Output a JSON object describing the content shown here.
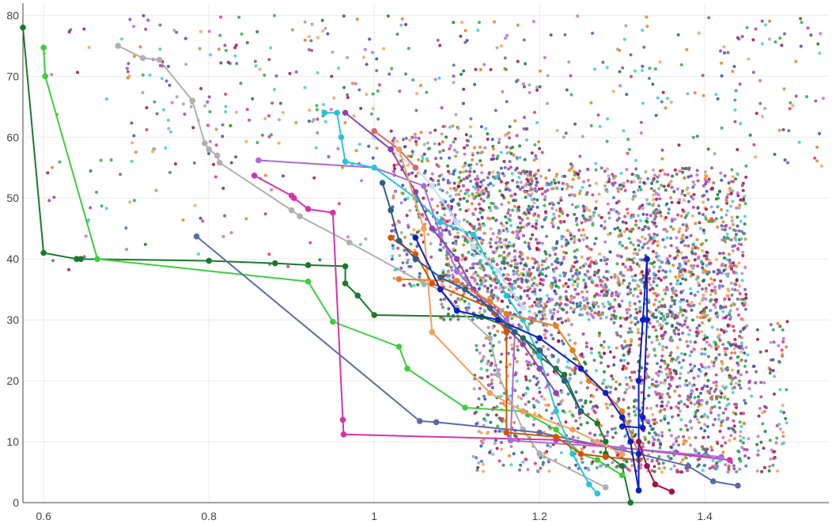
{
  "chart_data": {
    "type": "scatter",
    "title": "",
    "xlabel": "",
    "ylabel": "",
    "xlim": [
      0.575,
      1.55
    ],
    "ylim": [
      0,
      82
    ],
    "grid": true,
    "legend": "none",
    "x_ticks": [
      {
        "value": 0.6,
        "label": "0.6"
      },
      {
        "value": 0.8,
        "label": "0.8"
      },
      {
        "value": 1.0,
        "label": "1"
      },
      {
        "value": 1.2,
        "label": "1.2"
      },
      {
        "value": 1.4,
        "label": "1.4"
      }
    ],
    "y_ticks": [
      {
        "value": 0,
        "label": "0"
      },
      {
        "value": 10,
        "label": "10"
      },
      {
        "value": 20,
        "label": "20"
      },
      {
        "value": 30,
        "label": "30"
      },
      {
        "value": 40,
        "label": "40"
      },
      {
        "value": 50,
        "label": "50"
      },
      {
        "value": 60,
        "label": "60"
      },
      {
        "value": 70,
        "label": "70"
      },
      {
        "value": 80,
        "label": "80"
      }
    ],
    "background_scatter": {
      "colors": [
        "#e67e22",
        "#2e4fb5",
        "#8e44ad",
        "#2eaa4a",
        "#d63384",
        "#1a7a2a",
        "#a0a0a0",
        "#f5a05a",
        "#41c8dc",
        "#a50e4a",
        "#5b6ba8",
        "#c266d9"
      ],
      "clusters": [
        {
          "xmin": 1.08,
          "xmax": 1.45,
          "ymin": 30,
          "ymax": 55,
          "count": 1600
        },
        {
          "xmin": 1.12,
          "xmax": 1.45,
          "ymin": 5,
          "ymax": 40,
          "count": 1200
        },
        {
          "xmin": 1.02,
          "xmax": 1.2,
          "ymin": 35,
          "ymax": 62,
          "count": 450
        },
        {
          "xmin": 1.3,
          "xmax": 1.5,
          "ymin": 5,
          "ymax": 30,
          "count": 450
        },
        {
          "xmin": 0.7,
          "xmax": 1.55,
          "ymin": 55,
          "ymax": 80,
          "count": 400
        },
        {
          "xmin": 0.6,
          "xmax": 1.0,
          "ymin": 38,
          "ymax": 78,
          "count": 120
        }
      ]
    },
    "series": [
      {
        "color": "#1a7a2a",
        "points": [
          [
            0.575,
            78
          ],
          [
            0.6,
            41
          ],
          [
            0.64,
            40
          ],
          [
            0.645,
            40
          ],
          [
            0.8,
            39.7
          ],
          [
            0.88,
            39.3
          ],
          [
            0.92,
            39
          ],
          [
            0.965,
            38.8
          ],
          [
            0.965,
            36
          ],
          [
            0.98,
            34
          ],
          [
            1.0,
            30.8
          ],
          [
            1.13,
            30.5
          ],
          [
            1.16,
            29
          ],
          [
            1.18,
            27
          ],
          [
            1.2,
            24
          ],
          [
            1.22,
            22
          ],
          [
            1.23,
            21
          ],
          [
            1.25,
            15
          ],
          [
            1.27,
            13
          ],
          [
            1.28,
            10
          ],
          [
            1.28,
            8
          ],
          [
            1.3,
            6
          ],
          [
            1.31,
            0
          ]
        ]
      },
      {
        "color": "#3ccf3c",
        "points": [
          [
            0.6,
            74.7
          ],
          [
            0.602,
            70
          ],
          [
            0.665,
            40
          ],
          [
            0.92,
            36.3
          ],
          [
            0.95,
            29.7
          ],
          [
            1.03,
            25.6
          ],
          [
            1.04,
            22
          ],
          [
            1.11,
            15.6
          ],
          [
            1.18,
            15
          ],
          [
            1.22,
            12
          ],
          [
            1.25,
            8
          ],
          [
            1.27,
            7
          ],
          [
            1.3,
            4.5
          ]
        ]
      },
      {
        "color": "#b0b0b0",
        "points": [
          [
            0.69,
            75
          ],
          [
            0.72,
            73
          ],
          [
            0.74,
            72.7
          ],
          [
            0.78,
            66
          ],
          [
            0.795,
            59
          ],
          [
            0.8,
            58
          ],
          [
            0.81,
            57
          ],
          [
            0.813,
            55.8
          ],
          [
            0.9,
            48
          ],
          [
            0.91,
            47
          ],
          [
            0.97,
            42.7
          ],
          [
            1.06,
            36
          ],
          [
            1.08,
            35
          ],
          [
            1.1,
            32
          ],
          [
            1.14,
            27
          ],
          [
            1.15,
            21
          ],
          [
            1.18,
            12
          ],
          [
            1.2,
            8
          ],
          [
            1.28,
            2.5
          ]
        ]
      },
      {
        "color": "#5b6ba8",
        "points": [
          [
            0.785,
            43.7
          ],
          [
            1.055,
            13.4
          ],
          [
            1.075,
            13.2
          ],
          [
            1.2,
            11.5
          ],
          [
            1.32,
            8
          ],
          [
            1.38,
            6
          ],
          [
            1.41,
            3.5
          ],
          [
            1.44,
            2.8
          ]
        ]
      },
      {
        "color": "#d633a8",
        "points": [
          [
            0.855,
            53.7
          ],
          [
            0.9,
            50.4
          ],
          [
            0.903,
            50
          ],
          [
            0.92,
            48.2
          ],
          [
            0.95,
            47.6
          ],
          [
            0.962,
            13.6
          ],
          [
            0.963,
            11.2
          ],
          [
            1.22,
            10.3
          ],
          [
            1.3,
            9
          ],
          [
            1.43,
            7
          ]
        ]
      },
      {
        "color": "#a66fd9",
        "points": [
          [
            0.86,
            56.2
          ],
          [
            1.0,
            55
          ],
          [
            1.06,
            52
          ],
          [
            1.08,
            44
          ],
          [
            1.1,
            38
          ],
          [
            1.12,
            35
          ],
          [
            1.16,
            30
          ],
          [
            1.17,
            28
          ],
          [
            1.165,
            10.2
          ],
          [
            1.3,
            9
          ],
          [
            1.42,
            7.5
          ]
        ]
      },
      {
        "color": "#26c6da",
        "points": [
          [
            0.94,
            64
          ],
          [
            0.955,
            64
          ],
          [
            0.96,
            60
          ],
          [
            0.965,
            56
          ],
          [
            1.0,
            55
          ],
          [
            1.05,
            50
          ],
          [
            1.08,
            46
          ],
          [
            1.12,
            44
          ],
          [
            1.16,
            34
          ],
          [
            1.18,
            30
          ],
          [
            1.2,
            24
          ],
          [
            1.22,
            15
          ],
          [
            1.24,
            8
          ],
          [
            1.26,
            3
          ],
          [
            1.27,
            1.5
          ]
        ]
      },
      {
        "color": "#c0e0ff",
        "points": [
          [
            1.0,
            60
          ],
          [
            1.02,
            58
          ],
          [
            1.05,
            55
          ],
          [
            1.07,
            52
          ],
          [
            1.1,
            46
          ],
          [
            1.12,
            42
          ],
          [
            1.15,
            38
          ],
          [
            1.18,
            32
          ]
        ]
      },
      {
        "color": "#8e44ad",
        "points": [
          [
            0.965,
            64
          ],
          [
            1.02,
            58
          ],
          [
            1.05,
            51
          ],
          [
            1.07,
            45
          ],
          [
            1.1,
            40
          ],
          [
            1.12,
            35
          ],
          [
            1.15,
            30
          ],
          [
            1.18,
            26
          ],
          [
            1.2,
            22
          ],
          [
            1.22,
            18
          ]
        ]
      },
      {
        "color": "#e06666",
        "points": [
          [
            1.0,
            61
          ],
          [
            1.03,
            58
          ],
          [
            1.05,
            55
          ]
        ]
      },
      {
        "color": "#f5a05a",
        "points": [
          [
            1.03,
            58
          ],
          [
            1.06,
            45
          ],
          [
            1.07,
            28
          ],
          [
            1.14,
            18
          ],
          [
            1.18,
            15
          ],
          [
            1.24,
            12
          ],
          [
            1.27,
            10
          ],
          [
            1.3,
            8
          ]
        ]
      },
      {
        "color": "#d35400",
        "points": [
          [
            1.02,
            43.5
          ],
          [
            1.05,
            40.8
          ],
          [
            1.07,
            36
          ],
          [
            1.14,
            32
          ],
          [
            1.16,
            28
          ],
          [
            1.16,
            11.5
          ],
          [
            1.22,
            10.8
          ],
          [
            1.25,
            8
          ],
          [
            1.28,
            7.5
          ],
          [
            1.32,
            7
          ]
        ]
      },
      {
        "color": "#e67e22",
        "points": [
          [
            1.03,
            36.7
          ],
          [
            1.1,
            36.4
          ],
          [
            1.14,
            33
          ],
          [
            1.16,
            31
          ],
          [
            1.22,
            29
          ],
          [
            1.24,
            25
          ],
          [
            1.26,
            20
          ],
          [
            1.28,
            18
          ],
          [
            1.3,
            15
          ],
          [
            1.32,
            8
          ]
        ]
      },
      {
        "color": "#0a1fc4",
        "points": [
          [
            1.05,
            43.5
          ],
          [
            1.08,
            35
          ],
          [
            1.1,
            31.5
          ],
          [
            1.15,
            30
          ],
          [
            1.2,
            27
          ],
          [
            1.25,
            22
          ],
          [
            1.28,
            18
          ],
          [
            1.3,
            14
          ],
          [
            1.31,
            10
          ],
          [
            1.32,
            2
          ]
        ]
      },
      {
        "color": "#0a1fc4",
        "points": [
          [
            1.3,
            12.5
          ],
          [
            1.325,
            12.3
          ],
          [
            1.325,
            14
          ],
          [
            1.33,
            30
          ],
          [
            1.33,
            40
          ],
          [
            1.325,
            30
          ],
          [
            1.32,
            20
          ],
          [
            1.32,
            8
          ],
          [
            1.32,
            2
          ]
        ]
      },
      {
        "color": "#a50e4a",
        "points": [
          [
            1.32,
            10
          ],
          [
            1.33,
            6
          ],
          [
            1.34,
            3
          ],
          [
            1.36,
            1.8
          ]
        ]
      },
      {
        "color": "#2b5f8a",
        "points": [
          [
            1.01,
            52.5
          ],
          [
            1.02,
            48
          ],
          [
            1.03,
            43
          ],
          [
            1.05,
            40
          ],
          [
            1.08,
            37
          ],
          [
            1.11,
            35
          ],
          [
            1.14,
            32
          ],
          [
            1.17,
            28
          ],
          [
            1.2,
            25
          ],
          [
            1.23,
            20
          ],
          [
            1.25,
            15
          ]
        ]
      }
    ]
  }
}
